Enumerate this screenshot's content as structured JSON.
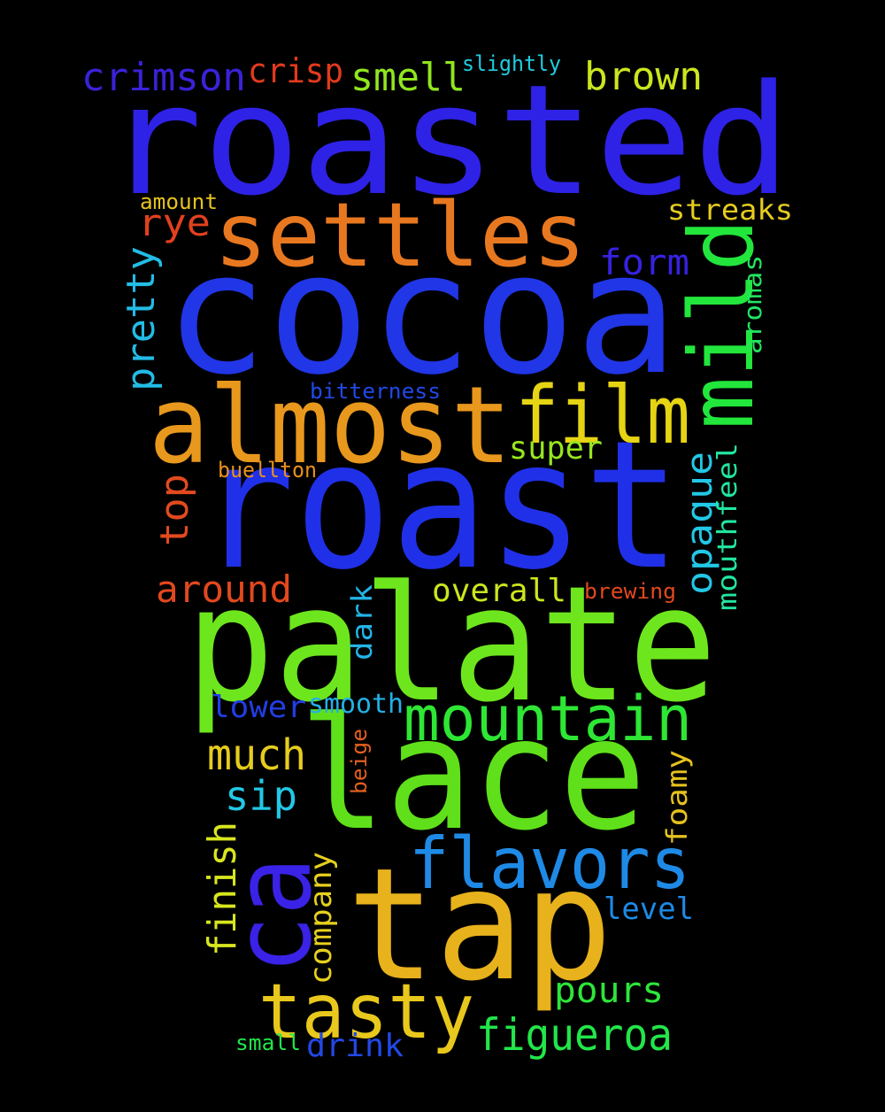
{
  "words": [
    {
      "text": "roasted",
      "color": "#2e22e6"
    },
    {
      "text": "cocoa",
      "color": "#2136e6"
    },
    {
      "text": "roast",
      "color": "#2030e8"
    },
    {
      "text": "palate",
      "color": "#6ee61e"
    },
    {
      "text": "lace",
      "color": "#5fe01a"
    },
    {
      "text": "tap",
      "color": "#e8b21c"
    },
    {
      "text": "almost",
      "color": "#e8981c"
    },
    {
      "text": "settles",
      "color": "#e87820"
    },
    {
      "text": "film",
      "color": "#e6d414"
    },
    {
      "text": "mild",
      "color": "#22e63c"
    },
    {
      "text": "ca",
      "color": "#3a22e6"
    },
    {
      "text": "flavors",
      "color": "#1e8ae6"
    },
    {
      "text": "mountain",
      "color": "#2ee634"
    },
    {
      "text": "tasty",
      "color": "#e8c81c"
    },
    {
      "text": "figueroa",
      "color": "#22e64a"
    },
    {
      "text": "crimson",
      "color": "#3a22d8"
    },
    {
      "text": "crisp",
      "color": "#e23a1e"
    },
    {
      "text": "smell",
      "color": "#90e61e"
    },
    {
      "text": "slightly",
      "color": "#20cce0"
    },
    {
      "text": "brown",
      "color": "#cce61e"
    },
    {
      "text": "amount",
      "color": "#e6c21e"
    },
    {
      "text": "rye",
      "color": "#e2401e"
    },
    {
      "text": "streaks",
      "color": "#e6cc1e"
    },
    {
      "text": "form",
      "color": "#3622e0"
    },
    {
      "text": "pretty",
      "color": "#22bce6"
    },
    {
      "text": "aromas",
      "color": "#22e660"
    },
    {
      "text": "bitterness",
      "color": "#2248e6"
    },
    {
      "text": "super",
      "color": "#96e61e"
    },
    {
      "text": "buellton",
      "color": "#e8901e"
    },
    {
      "text": "top",
      "color": "#e24a1e"
    },
    {
      "text": "opaque",
      "color": "#22c8e6"
    },
    {
      "text": "mouthfeel",
      "color": "#22e6a0"
    },
    {
      "text": "around",
      "color": "#e2481e"
    },
    {
      "text": "overall",
      "color": "#cce61e"
    },
    {
      "text": "brewing",
      "color": "#e2481e"
    },
    {
      "text": "dark",
      "color": "#22b4e6"
    },
    {
      "text": "lower",
      "color": "#223ee6"
    },
    {
      "text": "smooth",
      "color": "#22b0e6"
    },
    {
      "text": "much",
      "color": "#e6cc1e"
    },
    {
      "text": "beige",
      "color": "#e2601e"
    },
    {
      "text": "sip",
      "color": "#22c8e6"
    },
    {
      "text": "foamy",
      "color": "#e6c21e"
    },
    {
      "text": "finish",
      "color": "#d8e61e"
    },
    {
      "text": "company",
      "color": "#e6d01e"
    },
    {
      "text": "level",
      "color": "#1e8ae6"
    },
    {
      "text": "pours",
      "color": "#2ee63a"
    },
    {
      "text": "small",
      "color": "#22e64a"
    },
    {
      "text": "drink",
      "color": "#2248e6"
    }
  ]
}
